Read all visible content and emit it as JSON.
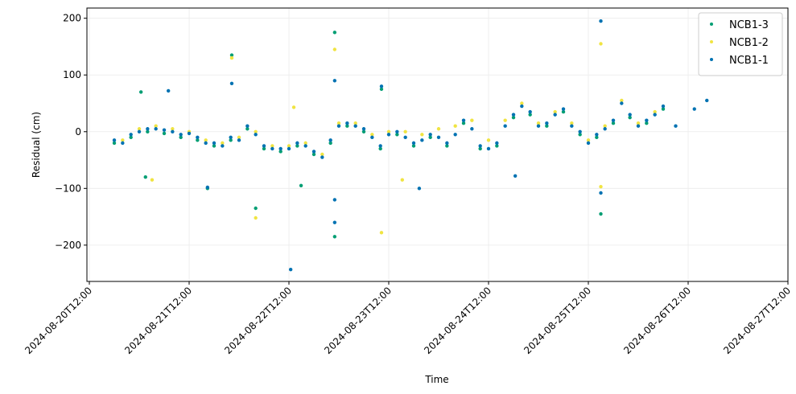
{
  "chart_data": {
    "type": "scatter",
    "x_label": "Time",
    "y_label": "Residual (cm)",
    "xlim": [
      "2024-08-20T11:25",
      "2024-08-27T12:00"
    ],
    "xticks": [
      "2024-08-20T12:00",
      "2024-08-21T12:00",
      "2024-08-22T12:00",
      "2024-08-23T12:00",
      "2024-08-24T12:00",
      "2024-08-25T12:00",
      "2024-08-26T12:00",
      "2024-08-27T12:00"
    ],
    "ylim": [
      -264,
      218
    ],
    "yticks": [
      {
        "value": -200,
        "label": "−200"
      },
      {
        "value": -100,
        "label": "−100"
      },
      0,
      100,
      200
    ],
    "grid": true,
    "legend": "upper right",
    "series": [
      {
        "name": "NCB1-3",
        "color": "#009e73",
        "x": [
          "2024-08-20T18:00",
          "2024-08-20T22:00",
          "2024-08-21T02:00",
          "2024-08-21T06:00",
          "2024-08-21T10:00",
          "2024-08-21T14:00",
          "2024-08-21T18:00",
          "2024-08-21T22:00",
          "2024-08-22T02:00",
          "2024-08-22T06:00",
          "2024-08-22T10:00",
          "2024-08-22T14:00",
          "2024-08-22T18:00",
          "2024-08-22T22:00",
          "2024-08-23T02:00",
          "2024-08-23T06:00",
          "2024-08-23T10:00",
          "2024-08-23T14:00",
          "2024-08-23T18:00",
          "2024-08-23T22:00",
          "2024-08-24T02:00",
          "2024-08-24T06:00",
          "2024-08-24T10:00",
          "2024-08-24T14:00",
          "2024-08-24T18:00",
          "2024-08-24T22:00",
          "2024-08-25T02:00",
          "2024-08-25T06:00",
          "2024-08-25T10:00",
          "2024-08-25T14:00",
          "2024-08-25T18:00",
          "2024-08-25T22:00",
          "2024-08-26T02:00",
          "2024-08-26T06:00",
          "2024-08-21T00:25",
          "2024-08-21T01:30",
          "2024-08-21T22:15",
          "2024-08-22T04:00",
          "2024-08-22T14:55",
          "2024-08-22T23:00",
          "2024-08-22T23:00",
          "2024-08-23T10:15",
          "2024-08-25T15:00",
          "2024-08-21T16:25"
        ],
        "values": [
          -20,
          -10,
          0,
          -3,
          -10,
          -15,
          -25,
          -15,
          5,
          -30,
          -35,
          -25,
          -40,
          -20,
          10,
          0,
          -30,
          -5,
          -25,
          -10,
          -25,
          15,
          -30,
          -25,
          25,
          30,
          10,
          35,
          -5,
          -10,
          15,
          25,
          15,
          40,
          70,
          -80,
          135,
          -135,
          -95,
          175,
          -185,
          75,
          -145,
          -100
        ]
      },
      {
        "name": "NCB1-2",
        "color": "#f0e442",
        "x": [
          "2024-08-20T20:00",
          "2024-08-21T00:00",
          "2024-08-21T04:00",
          "2024-08-21T08:00",
          "2024-08-21T12:00",
          "2024-08-21T16:00",
          "2024-08-21T20:00",
          "2024-08-22T00:00",
          "2024-08-22T04:00",
          "2024-08-22T08:00",
          "2024-08-22T12:00",
          "2024-08-22T16:00",
          "2024-08-22T20:00",
          "2024-08-23T00:00",
          "2024-08-23T04:00",
          "2024-08-23T08:00",
          "2024-08-23T12:00",
          "2024-08-23T16:00",
          "2024-08-23T20:00",
          "2024-08-24T00:00",
          "2024-08-24T04:00",
          "2024-08-24T08:00",
          "2024-08-24T12:00",
          "2024-08-24T16:00",
          "2024-08-24T20:00",
          "2024-08-25T00:00",
          "2024-08-25T04:00",
          "2024-08-25T08:00",
          "2024-08-25T12:00",
          "2024-08-25T16:00",
          "2024-08-25T20:00",
          "2024-08-26T00:00",
          "2024-08-26T04:00",
          "2024-08-21T03:05",
          "2024-08-21T22:15",
          "2024-08-22T04:00",
          "2024-08-22T23:00",
          "2024-08-23T10:15",
          "2024-08-25T15:00",
          "2024-08-25T15:00",
          "2024-08-23T15:15",
          "2024-08-22T13:10"
        ],
        "values": [
          -15,
          5,
          10,
          5,
          0,
          -15,
          -20,
          -10,
          0,
          -25,
          -25,
          -20,
          -40,
          15,
          15,
          -5,
          0,
          0,
          -5,
          5,
          10,
          20,
          -15,
          20,
          50,
          15,
          35,
          15,
          -15,
          10,
          55,
          15,
          35,
          -85,
          130,
          -152,
          145,
          -178,
          155,
          -97,
          -85,
          43
        ]
      },
      {
        "name": "NCB1-1",
        "color": "#0072b2",
        "x": [
          "2024-08-20T18:00",
          "2024-08-20T20:00",
          "2024-08-20T22:00",
          "2024-08-21T00:00",
          "2024-08-21T02:00",
          "2024-08-21T04:00",
          "2024-08-21T06:00",
          "2024-08-21T08:00",
          "2024-08-21T10:00",
          "2024-08-21T12:00",
          "2024-08-21T14:00",
          "2024-08-21T16:00",
          "2024-08-21T18:00",
          "2024-08-21T20:00",
          "2024-08-21T22:00",
          "2024-08-22T00:00",
          "2024-08-22T02:00",
          "2024-08-22T04:00",
          "2024-08-22T06:00",
          "2024-08-22T08:00",
          "2024-08-22T10:00",
          "2024-08-22T12:00",
          "2024-08-22T14:00",
          "2024-08-22T16:00",
          "2024-08-22T18:00",
          "2024-08-22T20:00",
          "2024-08-22T22:00",
          "2024-08-23T00:00",
          "2024-08-23T02:00",
          "2024-08-23T04:00",
          "2024-08-23T06:00",
          "2024-08-23T08:00",
          "2024-08-23T10:00",
          "2024-08-23T12:00",
          "2024-08-23T14:00",
          "2024-08-23T16:00",
          "2024-08-23T18:00",
          "2024-08-23T20:00",
          "2024-08-23T22:00",
          "2024-08-24T00:00",
          "2024-08-24T02:00",
          "2024-08-24T04:00",
          "2024-08-24T06:00",
          "2024-08-24T08:00",
          "2024-08-24T10:00",
          "2024-08-24T12:00",
          "2024-08-24T14:00",
          "2024-08-24T16:00",
          "2024-08-24T18:00",
          "2024-08-24T20:00",
          "2024-08-24T22:00",
          "2024-08-25T00:00",
          "2024-08-25T02:00",
          "2024-08-25T04:00",
          "2024-08-25T06:00",
          "2024-08-25T08:00",
          "2024-08-25T10:00",
          "2024-08-25T12:00",
          "2024-08-25T14:00",
          "2024-08-25T16:00",
          "2024-08-25T18:00",
          "2024-08-25T20:00",
          "2024-08-25T22:00",
          "2024-08-26T00:00",
          "2024-08-26T02:00",
          "2024-08-26T04:00",
          "2024-08-26T06:00",
          "2024-08-26T09:00",
          "2024-08-26T13:30",
          "2024-08-26T16:30",
          "2024-08-21T07:00",
          "2024-08-21T22:15",
          "2024-08-21T16:25",
          "2024-08-22T12:25",
          "2024-08-22T23:00",
          "2024-08-22T23:00",
          "2024-08-22T23:00",
          "2024-08-23T19:20",
          "2024-08-25T15:00",
          "2024-08-25T15:00",
          "2024-08-24T18:25",
          "2024-08-23T10:15"
        ],
        "values": [
          -15,
          -20,
          -5,
          0,
          5,
          5,
          3,
          0,
          -5,
          -3,
          -10,
          -20,
          -20,
          -25,
          -10,
          -15,
          10,
          -5,
          -25,
          -30,
          -30,
          -30,
          -20,
          -25,
          -35,
          -45,
          -15,
          10,
          15,
          10,
          5,
          -10,
          -25,
          -5,
          0,
          -10,
          -20,
          -15,
          -5,
          -10,
          -20,
          -5,
          20,
          5,
          -25,
          -30,
          -20,
          10,
          30,
          45,
          35,
          10,
          15,
          30,
          40,
          10,
          0,
          -20,
          -5,
          5,
          20,
          50,
          30,
          10,
          20,
          30,
          45,
          10,
          40,
          55,
          72,
          85,
          -98,
          -243,
          90,
          -120,
          -160,
          -100,
          195,
          -108,
          -78,
          80
        ]
      }
    ]
  }
}
